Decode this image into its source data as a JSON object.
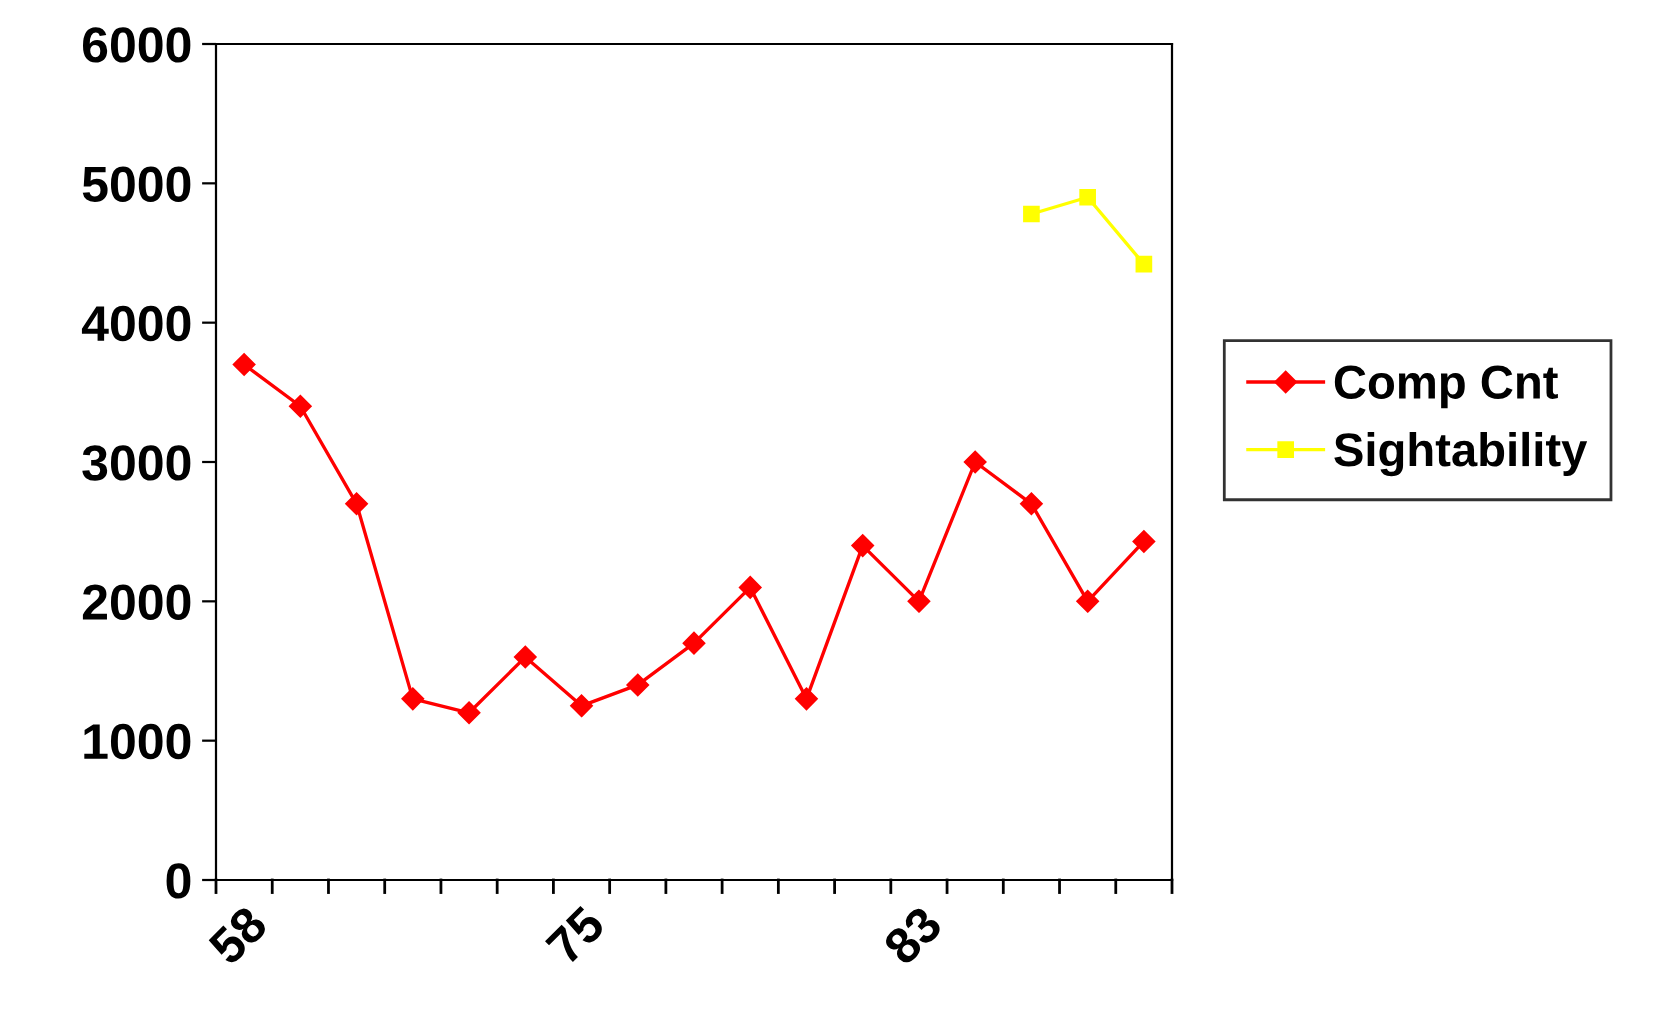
{
  "chart_data": {
    "type": "line",
    "categories": [
      "58",
      null,
      null,
      null,
      null,
      null,
      "75",
      null,
      null,
      null,
      null,
      null,
      "83",
      null,
      null,
      null,
      null
    ],
    "series": [
      {
        "name": "Comp Cnt",
        "color": "#ff0000",
        "marker": "diamond",
        "values": [
          3700,
          3400,
          2700,
          1300,
          1200,
          1600,
          1250,
          1400,
          1700,
          2100,
          1300,
          2400,
          2000,
          3000,
          2700,
          2000,
          2430
        ]
      },
      {
        "name": "Sightability",
        "color": "#ffff00",
        "marker": "square",
        "values": [
          null,
          null,
          null,
          null,
          null,
          null,
          null,
          null,
          null,
          null,
          null,
          null,
          null,
          null,
          4780,
          4900,
          4420
        ]
      }
    ],
    "ylim": [
      0,
      6000
    ],
    "yticks": [
      0,
      1000,
      2000,
      3000,
      4000,
      5000,
      6000
    ],
    "grid": false,
    "legend": "right",
    "line_style": "solid"
  }
}
